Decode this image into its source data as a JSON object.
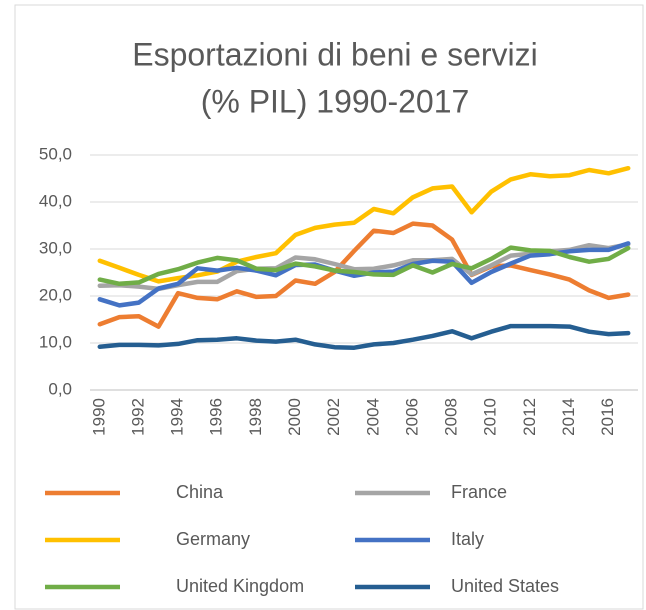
{
  "chart_data": {
    "type": "line",
    "title": [
      "Esportazioni di beni e servizi",
      "(% PIL) 1990-2017"
    ],
    "categories": [
      "1990",
      null,
      "1992",
      null,
      "1994",
      null,
      "1996",
      null,
      "1998",
      null,
      "2000",
      null,
      "2002",
      null,
      "2004",
      null,
      "2006",
      null,
      "2008",
      null,
      "2010",
      null,
      "2012",
      null,
      "2014",
      null,
      "2016",
      null
    ],
    "series": [
      {
        "name": "China",
        "color": "#ed7d31",
        "values": [
          14.0,
          15.5,
          15.7,
          13.5,
          20.6,
          19.6,
          19.3,
          21.0,
          19.8,
          20.0,
          23.3,
          22.6,
          25.1,
          29.6,
          33.9,
          33.4,
          35.4,
          35.0,
          32.0,
          24.5,
          26.3,
          26.5,
          25.5,
          24.6,
          23.5,
          21.2,
          19.6,
          20.3
        ]
      },
      {
        "name": "France",
        "color": "#a5a5a5",
        "values": [
          22.2,
          22.3,
          22.0,
          21.5,
          22.3,
          23.0,
          23.0,
          25.3,
          25.8,
          25.9,
          28.2,
          27.8,
          26.8,
          25.7,
          25.8,
          26.5,
          27.6,
          27.6,
          27.9,
          24.6,
          26.5,
          28.6,
          29.0,
          29.5,
          29.8,
          30.8,
          30.2,
          31.0
        ]
      },
      {
        "name": "Germany",
        "color": "#ffc000",
        "values": [
          27.5,
          26.0,
          24.5,
          23.1,
          23.8,
          24.4,
          25.2,
          27.3,
          28.3,
          29.1,
          33.0,
          34.5,
          35.2,
          35.6,
          38.5,
          37.6,
          41.0,
          42.9,
          43.3,
          37.8,
          42.2,
          44.8,
          45.9,
          45.5,
          45.7,
          46.8,
          46.1,
          47.2
        ]
      },
      {
        "name": "Italy",
        "color": "#4472c4",
        "values": [
          19.3,
          18.0,
          18.6,
          21.6,
          22.6,
          25.9,
          25.4,
          26.0,
          25.4,
          24.4,
          26.6,
          26.7,
          25.4,
          24.3,
          25.0,
          25.2,
          26.8,
          27.5,
          27.3,
          22.8,
          25.1,
          26.9,
          28.6,
          28.9,
          29.5,
          29.8,
          29.8,
          31.2
        ]
      },
      {
        "name": "United Kingdom",
        "color": "#70ad47",
        "values": [
          23.5,
          22.6,
          22.9,
          24.7,
          25.7,
          27.1,
          28.1,
          27.6,
          25.8,
          25.5,
          26.9,
          26.3,
          25.4,
          25.1,
          24.6,
          24.5,
          26.5,
          25.0,
          26.8,
          25.9,
          27.9,
          30.3,
          29.7,
          29.6,
          28.3,
          27.3,
          27.9,
          30.2
        ]
      },
      {
        "name": "United States",
        "color": "#255e91",
        "values": [
          9.2,
          9.6,
          9.6,
          9.5,
          9.8,
          10.6,
          10.7,
          11.0,
          10.5,
          10.3,
          10.7,
          9.7,
          9.1,
          9.0,
          9.7,
          10.0,
          10.7,
          11.5,
          12.5,
          11.0,
          12.4,
          13.6,
          13.6,
          13.6,
          13.5,
          12.4,
          11.9,
          12.1
        ]
      }
    ],
    "ylim": [
      0,
      50
    ],
    "yticks": [
      {
        "value": 0,
        "label": "0,0"
      },
      {
        "value": 10,
        "label": "10,0"
      },
      {
        "value": 20,
        "label": "20,0"
      },
      {
        "value": 30,
        "label": "30,0"
      },
      {
        "value": 40,
        "label": "40,0"
      },
      {
        "value": 50,
        "label": "50,0"
      }
    ],
    "grid": true,
    "legend": "bottom"
  }
}
